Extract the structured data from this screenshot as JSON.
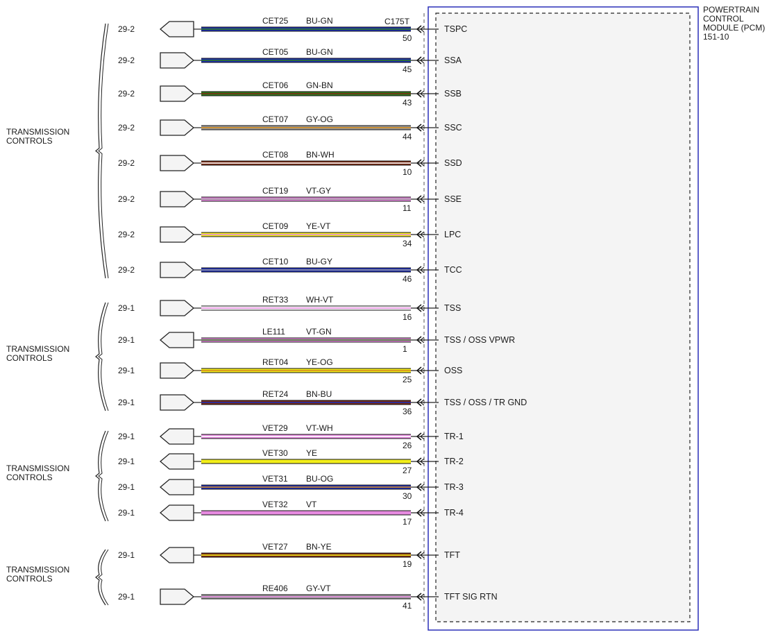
{
  "module": {
    "title_lines": [
      "POWERTRAIN",
      "CONTROL",
      "MODULE (PCM)",
      "151-10"
    ],
    "connector": "C175T"
  },
  "colors": {
    "BU": "#1e2fb5",
    "GN": "#2f7a1d",
    "GY": "#9a9a9a",
    "OG": "#d48a1c",
    "BN": "#7a2a14",
    "WH": "#ffffff",
    "VT": "#e68ae0",
    "YE": "#f2ee1a",
    "RD": "#c0392b",
    "border": "#2a2fb8"
  },
  "groups": [
    {
      "label_lines": [
        "TRANSMISSION",
        "CONTROLS"
      ]
    },
    {
      "label_lines": [
        "TRANSMISSION",
        "CONTROLS"
      ]
    },
    {
      "label_lines": [
        "TRANSMISSION",
        "CONTROLS"
      ]
    },
    {
      "label_lines": [
        "TRANSMISSION",
        "CONTROLS"
      ]
    }
  ],
  "circuits": [
    {
      "ref": "29-2",
      "circuit": "CET25",
      "color": "BU-GN",
      "pin": "50",
      "signal": "TSPC",
      "arrow": "out"
    },
    {
      "ref": "29-2",
      "circuit": "CET05",
      "color": "BU-GN",
      "pin": "45",
      "signal": "SSA",
      "arrow": "in"
    },
    {
      "ref": "29-2",
      "circuit": "CET06",
      "color": "GN-BN",
      "pin": "43",
      "signal": "SSB",
      "arrow": "in"
    },
    {
      "ref": "29-2",
      "circuit": "CET07",
      "color": "GY-OG",
      "pin": "44",
      "signal": "SSC",
      "arrow": "in"
    },
    {
      "ref": "29-2",
      "circuit": "CET08",
      "color": "BN-WH",
      "pin": "10",
      "signal": "SSD",
      "arrow": "in"
    },
    {
      "ref": "29-2",
      "circuit": "CET19",
      "color": "VT-GY",
      "pin": "11",
      "signal": "SSE",
      "arrow": "in"
    },
    {
      "ref": "29-2",
      "circuit": "CET09",
      "color": "YE-VT",
      "pin": "34",
      "signal": "LPC",
      "arrow": "in"
    },
    {
      "ref": "29-2",
      "circuit": "CET10",
      "color": "BU-GY",
      "pin": "46",
      "signal": "TCC",
      "arrow": "in"
    },
    {
      "ref": "29-1",
      "circuit": "RET33",
      "color": "WH-VT",
      "pin": "16",
      "signal": "TSS",
      "arrow": "in"
    },
    {
      "ref": "29-1",
      "circuit": "LE111",
      "color": "VT-GN",
      "pin": "1",
      "signal": "TSS / OSS VPWR",
      "arrow": "out"
    },
    {
      "ref": "29-1",
      "circuit": "RET04",
      "color": "YE-OG",
      "pin": "25",
      "signal": "OSS",
      "arrow": "in"
    },
    {
      "ref": "29-1",
      "circuit": "RET24",
      "color": "BN-BU",
      "pin": "36",
      "signal": "TSS / OSS / TR GND",
      "arrow": "in"
    },
    {
      "ref": "29-1",
      "circuit": "VET29",
      "color": "VT-WH",
      "pin": "26",
      "signal": "TR-1",
      "arrow": "out"
    },
    {
      "ref": "29-1",
      "circuit": "VET30",
      "color": "YE",
      "pin": "27",
      "signal": "TR-2",
      "arrow": "out"
    },
    {
      "ref": "29-1",
      "circuit": "VET31",
      "color": "BU-OG",
      "pin": "30",
      "signal": "TR-3",
      "arrow": "out"
    },
    {
      "ref": "29-1",
      "circuit": "VET32",
      "color": "VT",
      "pin": "17",
      "signal": "TR-4",
      "arrow": "out"
    },
    {
      "ref": "29-1",
      "circuit": "VET27",
      "color": "BN-YE",
      "pin": "19",
      "signal": "TFT",
      "arrow": "out"
    },
    {
      "ref": "29-1",
      "circuit": "RE406",
      "color": "GY-VT",
      "pin": "41",
      "signal": "TFT SIG RTN",
      "arrow": "in"
    }
  ]
}
